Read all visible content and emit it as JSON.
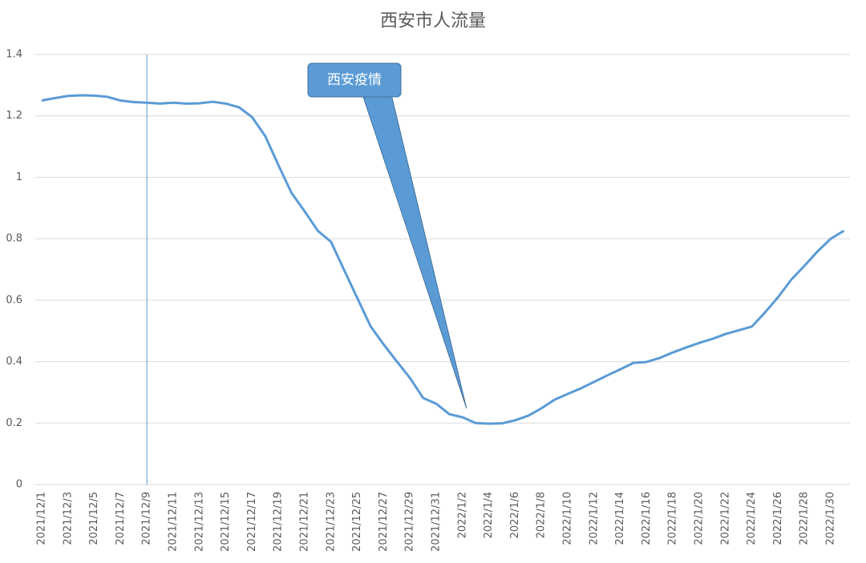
{
  "chart_data": {
    "type": "line",
    "title": "西安市人流量",
    "categories": [
      "2021/12/1",
      null,
      "2021/12/3",
      null,
      "2021/12/5",
      null,
      "2021/12/7",
      null,
      "2021/12/9",
      null,
      "2021/12/11",
      null,
      "2021/12/13",
      null,
      "2021/12/15",
      null,
      "2021/12/17",
      null,
      "2021/12/19",
      null,
      "2021/12/21",
      null,
      "2021/12/23",
      null,
      "2021/12/25",
      null,
      "2021/12/27",
      null,
      "2021/12/29",
      null,
      "2021/12/31",
      null,
      "2022/1/2",
      null,
      "2022/1/4",
      null,
      "2022/1/6",
      null,
      "2022/1/8",
      null,
      "2022/1/10",
      null,
      "2022/1/12",
      null,
      "2022/1/14",
      null,
      "2022/1/16",
      null,
      "2022/1/18",
      null,
      "2022/1/20",
      null,
      "2022/1/22",
      null,
      "2022/1/24",
      null,
      "2022/1/26",
      null,
      "2022/1/28",
      null,
      "2022/1/30",
      null
    ],
    "values": [
      1.25,
      1.258,
      1.265,
      1.267,
      1.266,
      1.262,
      1.25,
      1.245,
      1.243,
      1.24,
      1.243,
      1.24,
      1.241,
      1.246,
      1.24,
      1.228,
      1.196,
      1.134,
      1.04,
      0.949,
      0.889,
      0.826,
      0.79,
      0.698,
      0.607,
      0.516,
      0.456,
      0.401,
      0.347,
      0.282,
      0.263,
      0.229,
      0.219,
      0.2,
      0.198,
      0.199,
      0.209,
      0.224,
      0.248,
      0.276,
      0.295,
      0.313,
      0.334,
      0.355,
      0.375,
      0.396,
      0.399,
      0.412,
      0.43,
      0.446,
      0.461,
      0.474,
      0.49,
      0.502,
      0.514,
      0.56,
      0.61,
      0.667,
      0.712,
      0.759,
      0.8,
      0.826
    ],
    "color": "#5b9bd5",
    "ylim": [
      0,
      1.4
    ],
    "yticks": [
      0,
      0.2,
      0.4,
      0.6,
      0.8,
      1,
      1.2,
      1.4
    ],
    "grid": true,
    "reference_line": {
      "category": "2021/12/9",
      "color": "#5b9bd5"
    },
    "annotation": {
      "text": "西安疫情",
      "category": "2022/1/2",
      "value": 0.248,
      "color": "#5b9bd5"
    }
  }
}
